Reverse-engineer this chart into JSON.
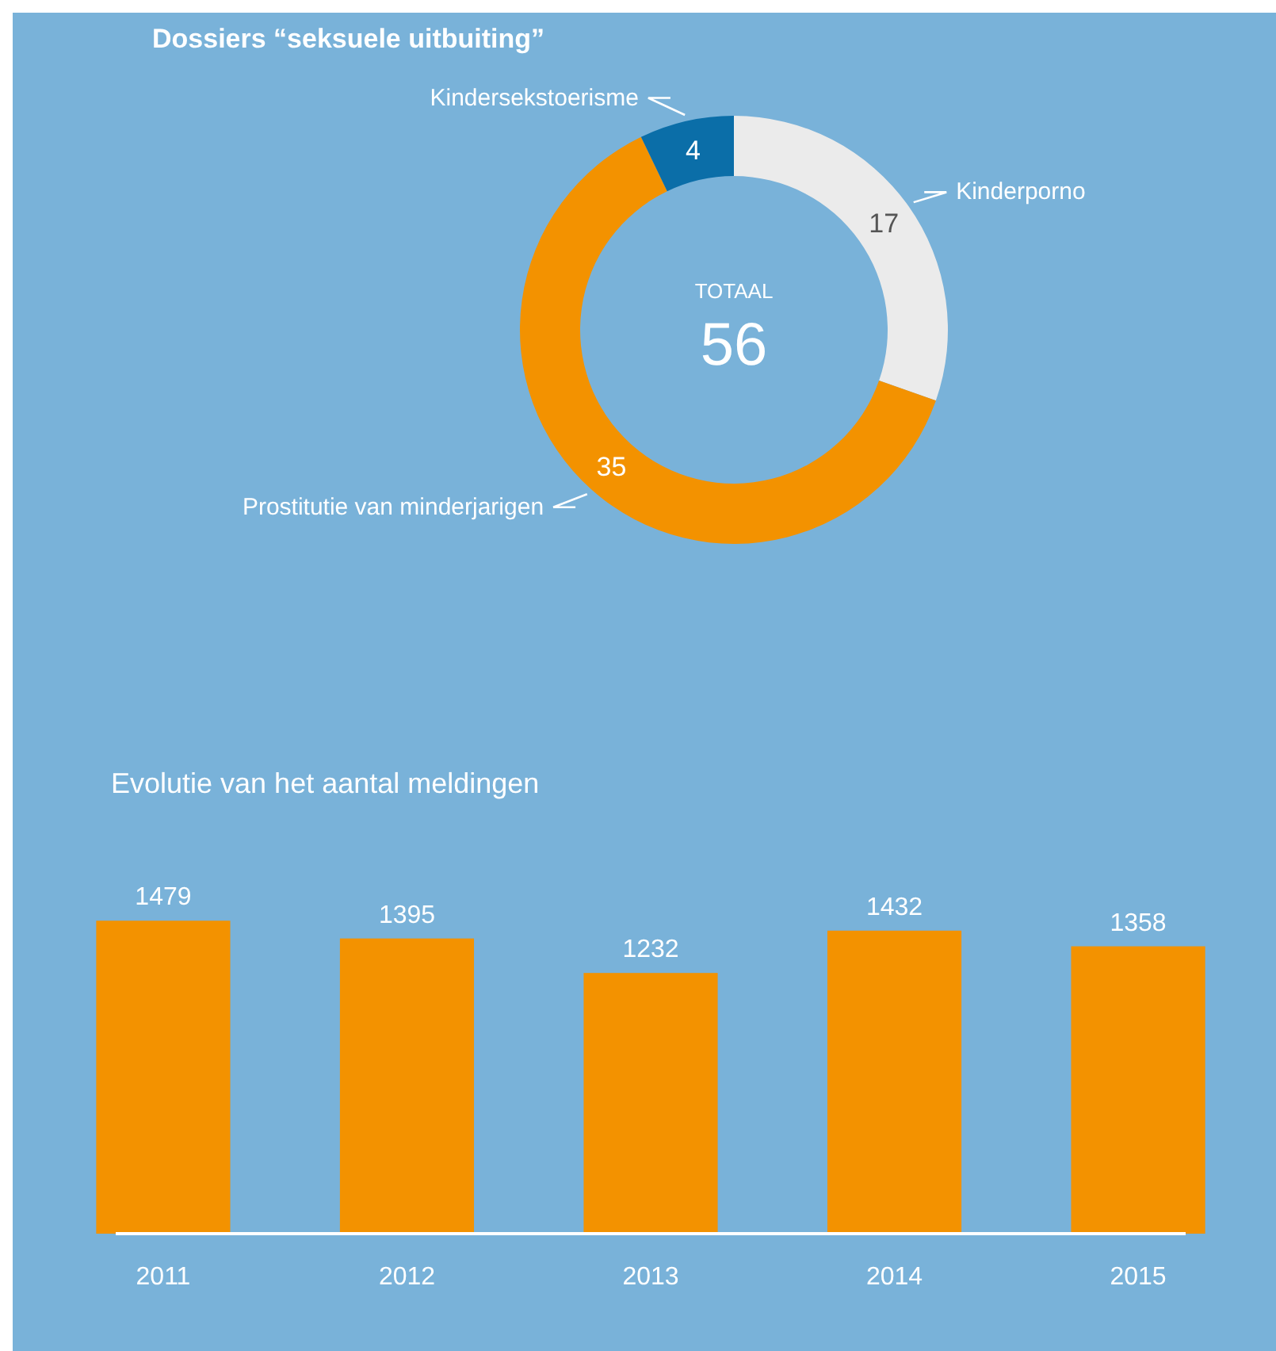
{
  "chart_data": [
    {
      "type": "donut",
      "title": "Dossiers “seksuele uitbuiting”",
      "categories": [
        "Kinderporno",
        "Prostitutie van minderjarigen",
        "Kindersekstoerisme"
      ],
      "values": [
        17,
        35,
        4
      ],
      "colors": [
        "#ebebeb",
        "#f39200",
        "#0b6ea8"
      ],
      "data_labels": true,
      "annotations": [
        "TOTAAL",
        "56"
      ]
    },
    {
      "type": "bar",
      "title": "Evolutie van het aantal meldingen",
      "categories": [
        "2011",
        "2012",
        "2013",
        "2014",
        "2015"
      ],
      "values": [
        1479,
        1395,
        1232,
        1432,
        1358
      ],
      "color": "#f39200",
      "data_labels": true
    }
  ]
}
